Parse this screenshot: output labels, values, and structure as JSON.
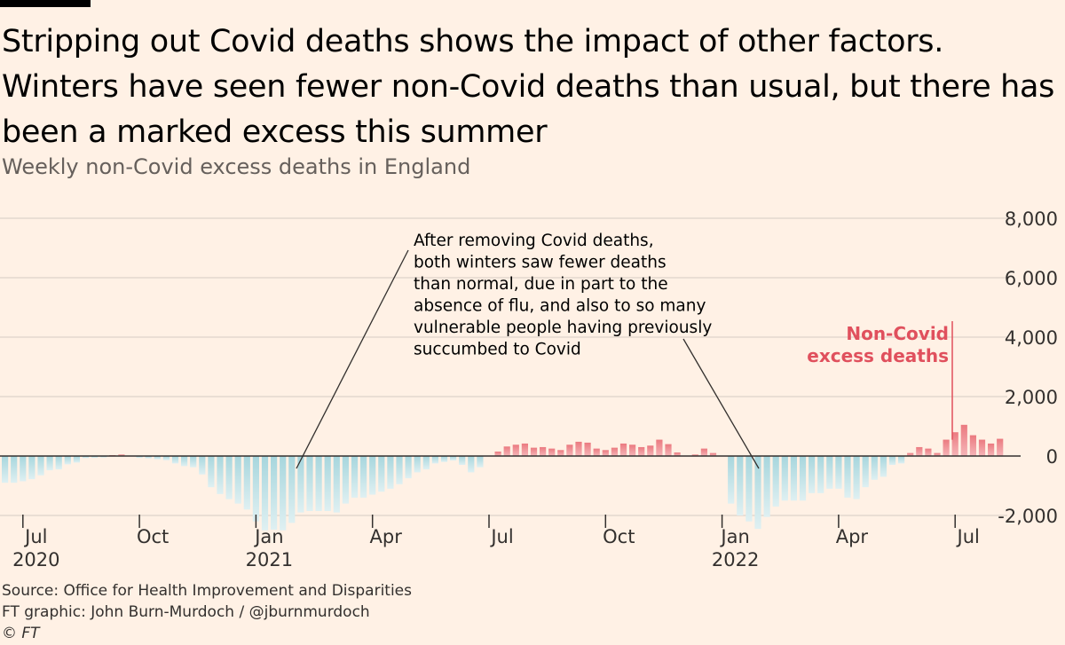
{
  "title": "Stripping out Covid deaths shows the impact of other factors. Winters have seen fewer non-Covid deaths than usual, but there has been a marked excess this summer",
  "subtitle": "Weekly non-Covid excess deaths in England",
  "annotation": {
    "lines": [
      "After removing Covid deaths,",
      "both winters saw fewer deaths",
      "than normal, due in part to the",
      "absence of flu, and also to so many",
      "vulnerable people having previously",
      "succumbed to Covid"
    ]
  },
  "series_label": {
    "lines": [
      "Non-Covid",
      "excess deaths"
    ]
  },
  "footer": {
    "source": "Source: Office for Health Improvement and Disparities",
    "credit": "FT graphic: John Burn-Murdoch / @jburnmurdoch",
    "copyright": "© FT"
  },
  "colors": {
    "background": "#fff1e5",
    "positive_top": "#eb7a80",
    "positive_bottom": "#f5b5b8",
    "negative_top": "#a7d6dd",
    "negative_bottom": "#dff0f2",
    "label_red": "#e0505d",
    "grid": "#e3d8cf",
    "axis": "#33302e"
  },
  "chart_data": {
    "type": "bar",
    "ylim": [
      -2000,
      8000
    ],
    "yticks": [
      -2000,
      0,
      2000,
      4000,
      6000,
      8000
    ],
    "ytick_labels": [
      "-2,000",
      "0",
      "2,000",
      "4,000",
      "6,000",
      "8,000"
    ],
    "x_ticks": [
      {
        "week": 2,
        "month": "Jul",
        "year": "2020"
      },
      {
        "week": 15,
        "month": "Oct",
        "year": ""
      },
      {
        "week": 28,
        "month": "Jan",
        "year": "2021"
      },
      {
        "week": 41,
        "month": "Apr",
        "year": ""
      },
      {
        "week": 54,
        "month": "Jul",
        "year": ""
      },
      {
        "week": 67,
        "month": "Oct",
        "year": ""
      },
      {
        "week": 80,
        "month": "Jan",
        "year": "2022"
      },
      {
        "week": 93,
        "month": "Apr",
        "year": ""
      },
      {
        "week": 106,
        "month": "Jul",
        "year": ""
      }
    ],
    "values": [
      -900,
      -900,
      -850,
      -780,
      -650,
      -480,
      -450,
      -280,
      -220,
      -70,
      -60,
      -50,
      30,
      50,
      0,
      -60,
      -80,
      -110,
      -140,
      -250,
      -340,
      -380,
      -620,
      -1050,
      -1280,
      -1450,
      -1600,
      -1800,
      -2200,
      -2500,
      -2480,
      -2500,
      -2250,
      -1900,
      -1850,
      -1850,
      -1850,
      -1900,
      -1600,
      -1400,
      -1400,
      -1300,
      -1200,
      -1100,
      -950,
      -750,
      -550,
      -450,
      -250,
      -200,
      -150,
      -300,
      -550,
      -380,
      0,
      150,
      320,
      380,
      420,
      280,
      300,
      250,
      200,
      380,
      480,
      450,
      250,
      200,
      280,
      420,
      380,
      300,
      350,
      550,
      400,
      120,
      0,
      50,
      250,
      100,
      0,
      -1600,
      -2000,
      -2200,
      -2450,
      -2050,
      -1700,
      -1500,
      -1500,
      -1500,
      -1250,
      -1250,
      -1100,
      -1100,
      -1400,
      -1450,
      -1050,
      -800,
      -700,
      -300,
      -250,
      100,
      300,
      250,
      100,
      550,
      800,
      1050,
      700,
      550,
      420,
      580
    ]
  }
}
